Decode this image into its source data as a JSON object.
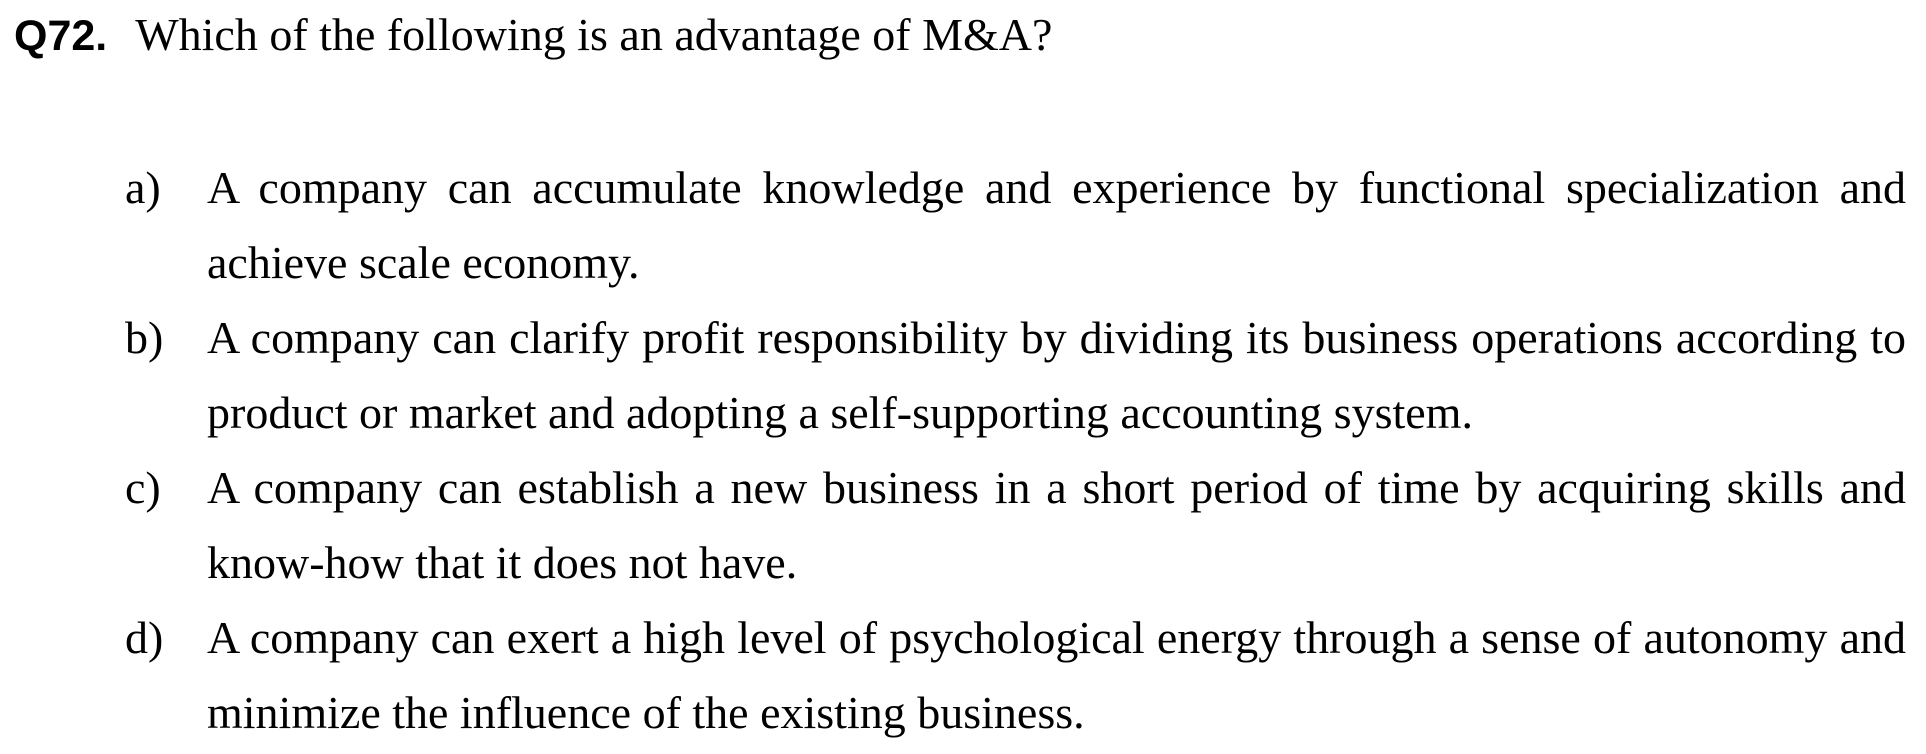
{
  "question": {
    "number": "Q72.",
    "text": "Which of the following is an advantage of M&A?"
  },
  "options": [
    {
      "letter": "a)",
      "text": "A company can accumulate knowledge and experience by functional specialization and achieve scale economy."
    },
    {
      "letter": "b)",
      "text": "A company can clarify profit responsibility by dividing its business operations according to product or market and adopting a self-supporting accounting system."
    },
    {
      "letter": "c)",
      "text": "A company can establish a new business in a short period of time by acquiring skills and know-how that it does not have."
    },
    {
      "letter": "d)",
      "text": "A company can exert a high level of psychological energy through a sense of autonomy and minimize the influence of the existing business."
    }
  ]
}
